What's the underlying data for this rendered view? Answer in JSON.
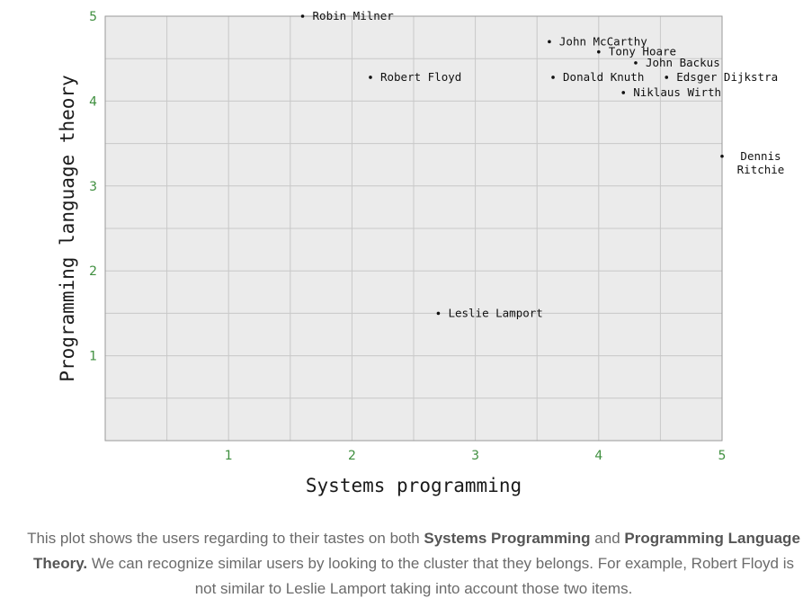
{
  "colors": {
    "plot_bg": "#ebebeb",
    "grid": "#c8c8c8",
    "frame": "#9a9a9a",
    "tick_text": "#3f8f3f",
    "point": "#111111"
  },
  "chart_data": {
    "type": "scatter",
    "title": "",
    "xlabel": "Systems programming",
    "ylabel": "Programming language theory",
    "xlim": [
      0,
      5
    ],
    "ylim": [
      0,
      5
    ],
    "xticks": [
      "1",
      "2",
      "3",
      "4",
      "5"
    ],
    "yticks": [
      "1",
      "2",
      "3",
      "4",
      "5"
    ],
    "grid": true,
    "points": [
      {
        "label": "Robin Milner",
        "x": 1.6,
        "y": 5.0
      },
      {
        "label": "John McCarthy",
        "x": 3.6,
        "y": 4.7
      },
      {
        "label": "Tony Hoare",
        "x": 4.0,
        "y": 4.58
      },
      {
        "label": "John Backus",
        "x": 4.3,
        "y": 4.45
      },
      {
        "label": "Robert Floyd",
        "x": 2.15,
        "y": 4.28
      },
      {
        "label": "Donald Knuth",
        "x": 3.63,
        "y": 4.28
      },
      {
        "label": "Edsger Dijkstra",
        "x": 4.55,
        "y": 4.28
      },
      {
        "label": "Niklaus Wirth",
        "x": 4.2,
        "y": 4.1
      },
      {
        "label": "Dennis Ritchie",
        "x": 5.0,
        "y": 3.35
      },
      {
        "label": "Leslie Lamport",
        "x": 2.7,
        "y": 1.5
      }
    ]
  },
  "caption": {
    "part1": "This plot shows the users regarding to their tastes on both ",
    "bold1": "Systems Programming",
    "part2": " and ",
    "bold2": "Programming Language Theory.",
    "part3": " We can recognize similar users by looking to the cluster that they belongs. For example, Robert Floyd is not similar to Leslie Lamport taking into account those two items."
  }
}
